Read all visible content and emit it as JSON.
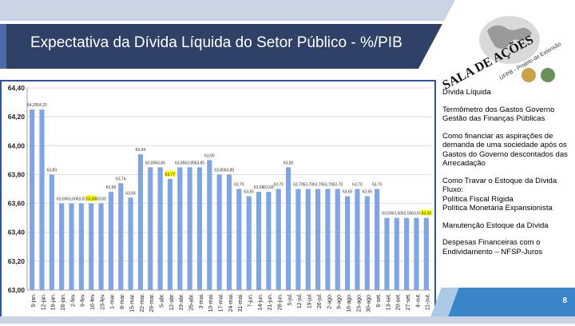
{
  "slide": {
    "title": "Expectativa da Dívida Líquida do Setor Público - %/PIB",
    "page_number": "8",
    "logo": {
      "text_main": "SALA DE AÇÕES",
      "text_sub": "UFPB - Projeto de Extensão"
    }
  },
  "notes": [
    {
      "lines": [
        "Dívida Líquida"
      ]
    },
    {
      "lines": [
        "Termômetro dos Gastos Governo",
        "Gestão das Finanças Públicas"
      ]
    },
    {
      "lines": [
        "Como financiar as aspirações de",
        "demanda de uma sociedade após os",
        "Gastos do Governo descontados das",
        "Arrecadação"
      ]
    },
    {
      "lines": [
        "Como Travar o Estoque da Dívida",
        "Fluxo:",
        "Política Fiscal Rígida",
        "Política Monetária Expansionista"
      ]
    },
    {
      "lines": [
        "Manutenção Estoque da Dívida"
      ]
    },
    {
      "lines": [
        "Despesas Financeiras com o",
        "Endividamento – NFSP-Juros"
      ]
    }
  ],
  "colors": {
    "bar": "#7fa6e0",
    "title_bg": "#2f4166",
    "highlight": "#ffff00",
    "accent": "#3a86c8"
  },
  "chart_data": {
    "type": "bar",
    "title": "",
    "xlabel": "",
    "ylabel": "",
    "ylim": [
      63.0,
      64.4
    ],
    "yticks": [
      "63,00",
      "63,20",
      "63,40",
      "63,60",
      "63,80",
      "64,00",
      "64,20",
      "64,40"
    ],
    "grid": true,
    "categories": [
      "5-jan.",
      "12-jan.",
      "19-jan.",
      "26-jan.",
      "2-fev.",
      "9-fev.",
      "16-fev.",
      "23-fev.",
      "1-mar.",
      "8-mar.",
      "15-mar.",
      "22-mar.",
      "29-mar.",
      "5-abr.",
      "12-abr.",
      "19-abr.",
      "26-abr.",
      "3-mai.",
      "10-mai.",
      "17-mai.",
      "24-mai.",
      "31-mai.",
      "7-jun.",
      "14-jun.",
      "21-jun.",
      "28-jun.",
      "5-jul.",
      "12-jul.",
      "19-jul.",
      "26-jul.",
      "2-ago.",
      "9-ago.",
      "16-ago.",
      "23-ago.",
      "30-ago.",
      "6-set.",
      "13-set.",
      "20-set.",
      "27-set.",
      "4-out.",
      "11-out."
    ],
    "values": [
      64.25,
      64.25,
      63.8,
      63.6,
      63.6,
      63.6,
      63.6,
      63.6,
      63.68,
      63.74,
      63.64,
      63.94,
      63.85,
      63.85,
      63.77,
      63.85,
      63.85,
      63.85,
      63.9,
      63.8,
      63.8,
      63.7,
      63.65,
      63.68,
      63.68,
      63.7,
      63.85,
      63.7,
      63.7,
      63.7,
      63.7,
      63.7,
      63.65,
      63.7,
      63.65,
      63.7,
      63.5,
      63.5,
      63.5,
      63.5,
      63.5
    ],
    "labels": [
      "64,25",
      "64,25",
      "63,80",
      "63,60",
      "63,60",
      "63,60",
      "63,60",
      "63,60",
      "63,68",
      "63,74",
      "63,64",
      "63,94",
      "63,85",
      "63,85",
      "63,77",
      "63,85",
      "63,85",
      "63,85",
      "63,90",
      "63,80",
      "63,80",
      "63,70",
      "63,65",
      "63,68",
      "63,68",
      "63,70",
      "63,85",
      "63,70",
      "63,70",
      "63,70",
      "63,70",
      "63,70",
      "63,65",
      "63,70",
      "63,65",
      "63,70",
      "63,50",
      "63,50",
      "63,50",
      "63,50",
      "63,50"
    ],
    "highlighted_indices": [
      6,
      14,
      40
    ]
  }
}
